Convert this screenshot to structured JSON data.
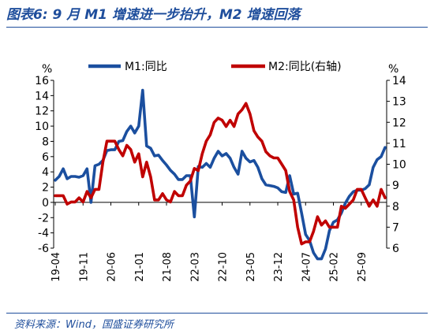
{
  "header": {
    "title": "图表6:  9 月 M1 增速进一步抬升，M2 增速回落"
  },
  "footer": {
    "source": "资料来源：Wind，国盛证券研究所"
  },
  "colors": {
    "m1": "#1b4f9f",
    "m2": "#c00000",
    "title": "#1f4e9c"
  },
  "chart_data": {
    "type": "line",
    "left_axis": {
      "unit": "%",
      "min": -6,
      "max": 16,
      "ticks": [
        -6,
        -4,
        -2,
        0,
        2,
        4,
        6,
        8,
        10,
        12,
        14,
        16
      ]
    },
    "right_axis": {
      "unit": "%",
      "min": 6,
      "max": 14,
      "ticks": [
        6,
        7,
        8,
        9,
        10,
        11,
        12,
        13,
        14
      ]
    },
    "x_tick_labels": [
      "19-04",
      "19-11",
      "20-06",
      "21-01",
      "21-08",
      "22-03",
      "22-10",
      "23-05",
      "23-12",
      "24-07",
      "25-02",
      "25-09"
    ],
    "legend": {
      "placement": "top",
      "entries": [
        "M1:同比",
        "M2:同比(右轴)"
      ]
    },
    "grid": false,
    "series": [
      {
        "name": "M1:同比",
        "axis": "left",
        "x_start": "2019-04",
        "values": [
          2.9,
          3.4,
          4.4,
          3.1,
          3.4,
          3.4,
          3.3,
          3.5,
          4.4,
          0.0,
          4.8,
          5.0,
          5.5,
          6.8,
          6.9,
          6.9,
          8.0,
          8.1,
          9.3,
          10.0,
          9.1,
          10.0,
          14.7,
          7.4,
          7.1,
          6.1,
          6.2,
          5.5,
          4.9,
          4.2,
          3.7,
          3.0,
          3.0,
          3.5,
          3.5,
          -1.9,
          4.7,
          4.6,
          5.1,
          4.6,
          5.8,
          6.7,
          6.1,
          6.4,
          5.8,
          4.6,
          3.7,
          6.7,
          5.8,
          5.3,
          5.5,
          4.6,
          3.1,
          2.3,
          2.2,
          2.1,
          1.9,
          1.4,
          1.3,
          3.5,
          1.1,
          1.2,
          -1.4,
          -4.2,
          -5.0,
          -6.6,
          -7.4,
          -7.4,
          -6.1,
          -3.7,
          -2.6,
          -2.3,
          -1.4,
          -0.1,
          0.8,
          1.4,
          1.6,
          1.6,
          1.8,
          2.3,
          4.6,
          5.6,
          6.0,
          7.2
        ]
      },
      {
        "name": "M2:同比(右轴)",
        "axis": "right",
        "x_start": "2019-04",
        "values": [
          8.5,
          8.5,
          8.5,
          8.1,
          8.2,
          8.2,
          8.4,
          8.2,
          8.7,
          8.4,
          8.8,
          8.8,
          10.1,
          11.1,
          11.1,
          11.1,
          10.7,
          10.4,
          10.9,
          10.7,
          10.1,
          10.5,
          9.4,
          10.1,
          9.4,
          8.3,
          8.3,
          8.6,
          8.3,
          8.2,
          8.7,
          8.5,
          8.5,
          9.0,
          9.2,
          9.8,
          9.7,
          10.5,
          11.1,
          11.4,
          12.0,
          12.2,
          12.1,
          11.8,
          12.1,
          11.8,
          12.4,
          12.6,
          12.9,
          12.4,
          11.6,
          11.3,
          11.1,
          10.6,
          10.4,
          10.3,
          10.3,
          10.0,
          9.7,
          8.7,
          8.3,
          7.0,
          6.2,
          6.3,
          6.3,
          6.8,
          7.5,
          7.1,
          7.3,
          7.0,
          7.0,
          7.0,
          8.0,
          7.9,
          8.1,
          8.3,
          8.8,
          8.8,
          8.4,
          8.0,
          8.3,
          8.0,
          8.8,
          8.4
        ]
      }
    ]
  }
}
